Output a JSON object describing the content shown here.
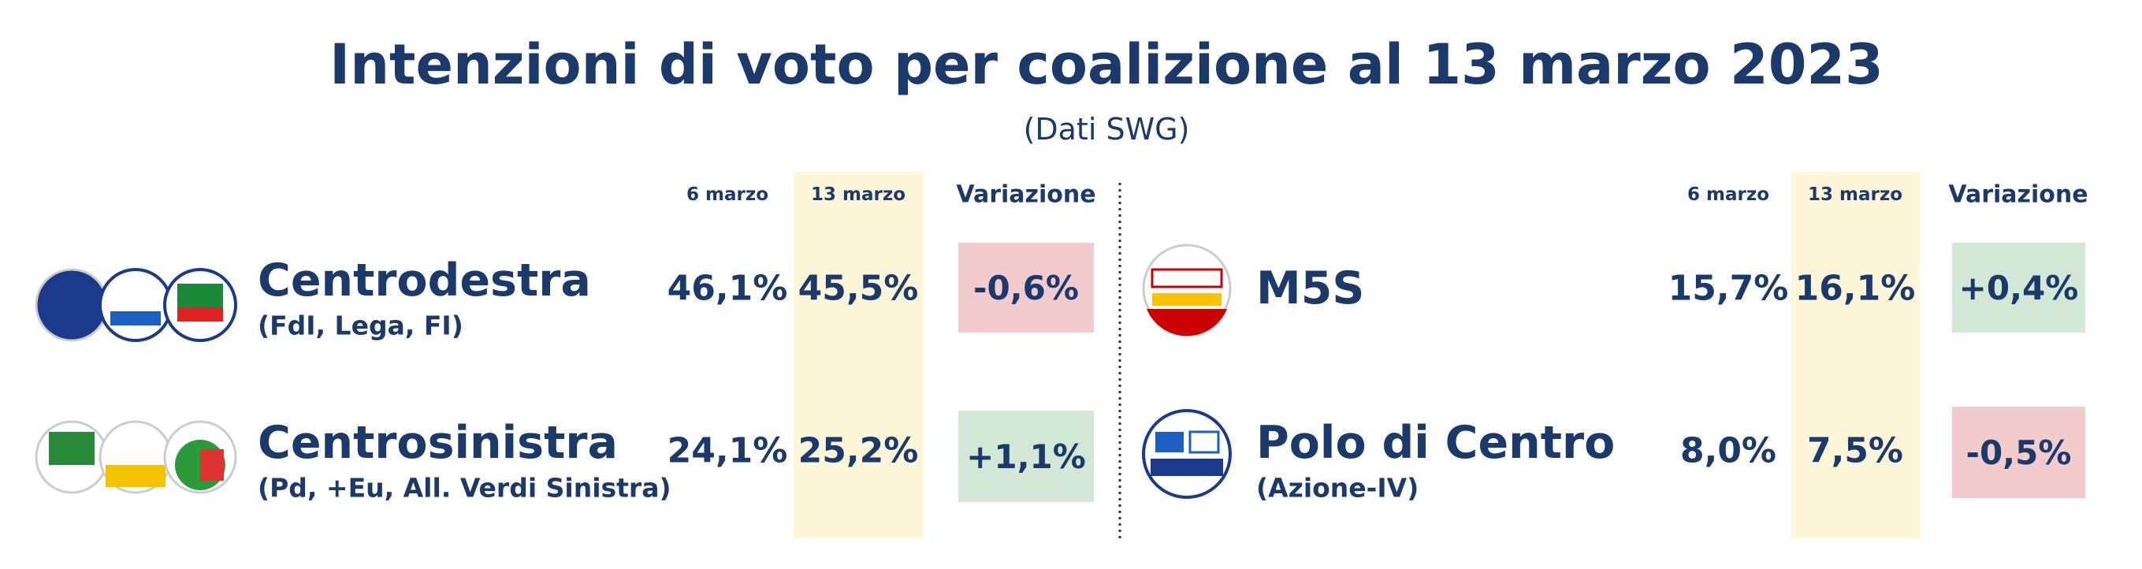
{
  "title": "Intenzioni di voto per coalizione al 13 marzo 2023",
  "subtitle": "(Dati SWG)",
  "panels": [
    {
      "headers": [
        "6 marzo",
        "13 marzo",
        "Variazione"
      ],
      "rows": [
        {
          "name": "Centrodestra",
          "detail": "(FdI, Lega, FI)",
          "previous": "46,1%",
          "current": "45,5%",
          "change": "-0,6%",
          "change_color": "#f2cccc"
        },
        {
          "name": "Centrosinistra",
          "detail": "(Pd, +Eu, All. Verdi Sinistra)",
          "previous": "24,1%",
          "current": "25,2%",
          "change": "+1,1%",
          "change_color": "#d3e7d6"
        }
      ]
    },
    {
      "headers": [
        "6 marzo",
        "13 marzo",
        "Variazione"
      ],
      "rows": [
        {
          "name": "M5S",
          "detail": null,
          "previous": "15,7%",
          "current": "16,1%",
          "change": "+0,4%",
          "change_color": "#d3e7d6"
        },
        {
          "name": "Polo di Centro",
          "detail": "(Azione-IV)",
          "previous": "8,0%",
          "current": "7,5%",
          "change": "-0,5%",
          "change_color": "#f2cccc"
        }
      ]
    }
  ]
}
